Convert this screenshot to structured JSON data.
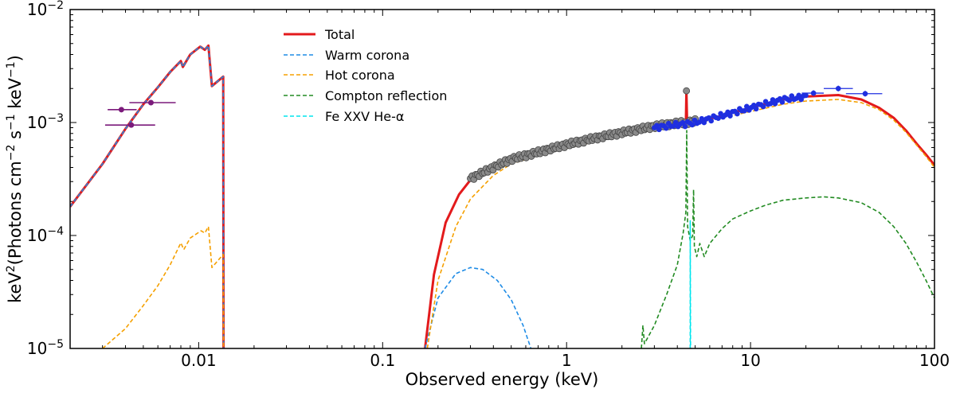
{
  "chart_data": {
    "type": "line",
    "xscale": "log",
    "yscale": "log",
    "xlim": [
      0.002,
      100
    ],
    "ylim": [
      1e-05,
      0.01
    ],
    "xlabel": "Observed energy (keV)",
    "ylabel_parts": [
      "keV",
      "2",
      "(Photons cm",
      "−2",
      " s",
      "−1",
      " keV",
      "−1",
      ")"
    ],
    "x_ticks": [
      {
        "value": 0.01,
        "label": "0.01"
      },
      {
        "value": 0.1,
        "label": "0.1"
      },
      {
        "value": 1,
        "label": "1"
      },
      {
        "value": 10,
        "label": "10"
      },
      {
        "value": 100,
        "label": "100"
      }
    ],
    "y_ticks": [
      {
        "value": 1e-05,
        "mantissa": "10",
        "exponent": "−5"
      },
      {
        "value": 0.0001,
        "mantissa": "10",
        "exponent": "−4"
      },
      {
        "value": 0.001,
        "mantissa": "10",
        "exponent": "−3"
      },
      {
        "value": 0.01,
        "mantissa": "10",
        "exponent": "−2"
      }
    ],
    "legend": {
      "location": "upper-center"
    },
    "series": [
      {
        "name": "Total",
        "color": "#e31a1c",
        "style": "solid",
        "segments": [
          [
            [
              0.002,
              0.00018
            ],
            [
              0.003,
              0.00043
            ],
            [
              0.004,
              0.00088
            ],
            [
              0.005,
              0.00145
            ],
            [
              0.006,
              0.00205
            ],
            [
              0.007,
              0.0028
            ],
            [
              0.008,
              0.0035
            ],
            [
              0.0082,
              0.0031
            ],
            [
              0.009,
              0.004
            ],
            [
              0.0102,
              0.0047
            ],
            [
              0.0108,
              0.0044
            ],
            [
              0.0113,
              0.0048
            ],
            [
              0.0118,
              0.0021
            ],
            [
              0.0136,
              0.00255
            ],
            [
              0.01365,
              1e-05
            ]
          ],
          [
            [
              0.17,
              1e-05
            ],
            [
              0.19,
              4.5e-05
            ],
            [
              0.22,
              0.00013
            ],
            [
              0.26,
              0.00023
            ],
            [
              0.3,
              0.00031
            ],
            [
              0.4,
              0.00039
            ],
            [
              0.5,
              0.00046
            ],
            [
              0.7,
              0.00053
            ],
            [
              1,
              0.00062
            ],
            [
              1.5,
              0.00072
            ],
            [
              2,
              0.00079
            ],
            [
              3,
              0.0009
            ],
            [
              4,
              0.00096
            ],
            [
              4.45,
              0.00097
            ],
            [
              4.48,
              0.0019
            ],
            [
              4.52,
              0.00098
            ],
            [
              5,
              0.001
            ],
            [
              7,
              0.00115
            ],
            [
              10,
              0.00135
            ],
            [
              15,
              0.0016
            ],
            [
              20,
              0.0017
            ],
            [
              30,
              0.00175
            ],
            [
              40,
              0.0016
            ],
            [
              50,
              0.00135
            ],
            [
              60,
              0.0011
            ],
            [
              70,
              0.00085
            ],
            [
              80,
              0.00065
            ],
            [
              90,
              0.00052
            ],
            [
              100,
              0.00042
            ]
          ]
        ]
      },
      {
        "name": "Warm corona",
        "color": "#1f8ce6",
        "style": "dashed",
        "segments": [
          [
            [
              0.002,
              0.00018
            ],
            [
              0.003,
              0.00043
            ],
            [
              0.004,
              0.00088
            ],
            [
              0.005,
              0.00145
            ],
            [
              0.006,
              0.00205
            ],
            [
              0.007,
              0.0028
            ],
            [
              0.008,
              0.0035
            ],
            [
              0.0082,
              0.0031
            ],
            [
              0.009,
              0.004
            ],
            [
              0.0102,
              0.0047
            ],
            [
              0.0108,
              0.0044
            ],
            [
              0.0113,
              0.0048
            ],
            [
              0.0118,
              0.0021
            ],
            [
              0.0136,
              0.00255
            ],
            [
              0.01365,
              1e-05
            ]
          ],
          [
            [
              0.17,
              1e-05
            ],
            [
              0.2,
              2.8e-05
            ],
            [
              0.25,
              4.6e-05
            ],
            [
              0.3,
              5.2e-05
            ],
            [
              0.35,
              5e-05
            ],
            [
              0.42,
              4e-05
            ],
            [
              0.5,
              2.7e-05
            ],
            [
              0.58,
              1.6e-05
            ],
            [
              0.64,
              1e-05
            ]
          ]
        ]
      },
      {
        "name": "Hot corona",
        "color": "#f5a000",
        "style": "dashed",
        "segments": [
          [
            [
              0.003,
              1e-05
            ],
            [
              0.004,
              1.5e-05
            ],
            [
              0.005,
              2.4e-05
            ],
            [
              0.006,
              3.6e-05
            ],
            [
              0.007,
              5.5e-05
            ],
            [
              0.008,
              8.6e-05
            ],
            [
              0.0083,
              7.5e-05
            ],
            [
              0.009,
              9.5e-05
            ],
            [
              0.0103,
              0.00011
            ],
            [
              0.0108,
              0.000105
            ],
            [
              0.0113,
              0.00012
            ],
            [
              0.0118,
              5.2e-05
            ],
            [
              0.0136,
              6.8e-05
            ],
            [
              0.01365,
              1e-05
            ]
          ],
          [
            [
              0.175,
              1e-05
            ],
            [
              0.2,
              4e-05
            ],
            [
              0.25,
              0.00012
            ],
            [
              0.3,
              0.00021
            ],
            [
              0.4,
              0.00034
            ],
            [
              0.5,
              0.00043
            ],
            [
              0.7,
              0.00051
            ],
            [
              1,
              0.00059
            ],
            [
              1.5,
              0.00069
            ],
            [
              2,
              0.00076
            ],
            [
              3,
              0.00086
            ],
            [
              5,
              0.00098
            ],
            [
              7,
              0.0011
            ],
            [
              10,
              0.00125
            ],
            [
              15,
              0.00145
            ],
            [
              20,
              0.00155
            ],
            [
              30,
              0.0016
            ],
            [
              40,
              0.0015
            ],
            [
              50,
              0.0013
            ],
            [
              60,
              0.00105
            ],
            [
              70,
              0.00082
            ],
            [
              80,
              0.00063
            ],
            [
              90,
              0.0005
            ],
            [
              100,
              0.0004
            ]
          ]
        ]
      },
      {
        "name": "Compton reflection",
        "color": "#228b22",
        "style": "dashed",
        "segments": [
          [
            [
              2.55,
              1e-05
            ],
            [
              2.6,
              1.6e-05
            ],
            [
              2.65,
              1.1e-05
            ],
            [
              3,
              1.6e-05
            ],
            [
              3.5,
              3e-05
            ],
            [
              4,
              5.5e-05
            ],
            [
              4.3,
              0.000105
            ],
            [
              4.45,
              0.00016
            ],
            [
              4.5,
              0.00085
            ],
            [
              4.55,
              0.00012
            ],
            [
              4.7,
              9e-05
            ],
            [
              4.85,
              0.0001
            ],
            [
              4.9,
              0.000255
            ],
            [
              4.95,
              8e-05
            ],
            [
              5.1,
              6.5e-05
            ],
            [
              5.3,
              8.5e-05
            ],
            [
              5.6,
              6.5e-05
            ],
            [
              6,
              8.5e-05
            ],
            [
              7,
              0.000115
            ],
            [
              8,
              0.00014
            ],
            [
              10,
              0.000165
            ],
            [
              12,
              0.000185
            ],
            [
              15,
              0.000205
            ],
            [
              20,
              0.000215
            ],
            [
              25,
              0.00022
            ],
            [
              30,
              0.000215
            ],
            [
              40,
              0.000195
            ],
            [
              50,
              0.00016
            ],
            [
              60,
              0.00012
            ],
            [
              70,
              8.5e-05
            ],
            [
              80,
              5.8e-05
            ],
            [
              90,
              4e-05
            ],
            [
              100,
              2.8e-05
            ]
          ]
        ]
      },
      {
        "name": "Fe XXV He-α",
        "color": "#00e5ee",
        "style": "dashed",
        "segments": [
          [
            [
              4.7,
              1e-05
            ],
            [
              4.7,
              0.000135
            ],
            [
              4.72,
              1e-05
            ]
          ]
        ]
      }
    ],
    "data_points": [
      {
        "group": "uv",
        "color": "#7b1a7b",
        "points": [
          {
            "x": 0.0038,
            "y": 0.0013,
            "xerr": [
              0.0032,
              0.0046
            ]
          },
          {
            "x": 0.0043,
            "y": 0.00095,
            "xerr": [
              0.0031,
              0.0058
            ]
          },
          {
            "x": 0.0055,
            "y": 0.0015,
            "xerr": [
              0.0042,
              0.0075
            ]
          }
        ]
      },
      {
        "group": "soft-x-ray",
        "color": "#8a8a8a",
        "model_offset": 1.03,
        "x_start": 0.3,
        "x_end": 5.0,
        "count": 130
      },
      {
        "group": "hard-x-ray",
        "color": "#1f2fe0",
        "x_start": 3.0,
        "x_end": 20.0,
        "count": 65,
        "extra_points": [
          {
            "x": 22,
            "y": 0.00182,
            "xerr": [
              19,
              25
            ]
          },
          {
            "x": 30,
            "y": 0.002,
            "xerr": [
              25,
              36
            ]
          },
          {
            "x": 42,
            "y": 0.0018,
            "xerr": [
              33,
              52
            ]
          }
        ]
      }
    ]
  }
}
